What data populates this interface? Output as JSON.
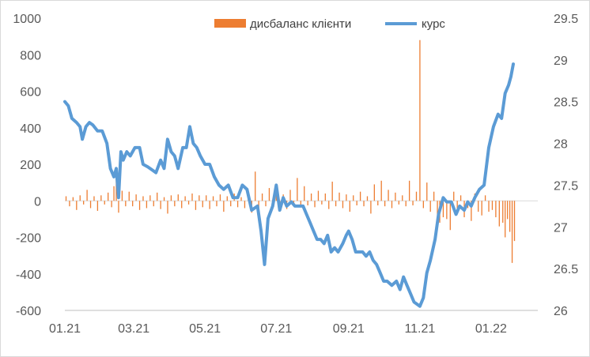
{
  "chart_data": {
    "type": "bar+line",
    "title": "",
    "legend": {
      "position": "top",
      "entries": [
        {
          "label": "дисбаланс клієнти",
          "kind": "bar",
          "color": "#ed7d31"
        },
        {
          "label": "курс",
          "kind": "line",
          "color": "#5b9bd5"
        }
      ]
    },
    "x_axis": {
      "type": "date",
      "range": [
        "2021-01-01",
        "2022-02-10"
      ],
      "tick_labels": [
        "01.21",
        "03.21",
        "05.21",
        "07.21",
        "09.21",
        "11.21",
        "01.22"
      ],
      "tick_dates": [
        "2021-01-01",
        "2021-03-01",
        "2021-05-01",
        "2021-07-01",
        "2021-09-01",
        "2021-11-01",
        "2022-01-01"
      ]
    },
    "y_left": {
      "min": -600,
      "max": 1000,
      "step": 200,
      "tick_labels": [
        "1000",
        "800",
        "600",
        "400",
        "200",
        "0",
        "-200",
        "-400",
        "-600"
      ]
    },
    "y_right": {
      "min": 26,
      "max": 29.5,
      "step": 0.5,
      "tick_labels": [
        "29.5",
        "29",
        "28.5",
        "28",
        "27.5",
        "27",
        "26.5",
        "26"
      ]
    },
    "series": [
      {
        "name": "курс",
        "axis": "right",
        "color": "#5b9bd5",
        "points": [
          [
            "2021-01-01",
            28.5
          ],
          [
            "2021-01-04",
            28.45
          ],
          [
            "2021-01-07",
            28.3
          ],
          [
            "2021-01-11",
            28.25
          ],
          [
            "2021-01-14",
            28.2
          ],
          [
            "2021-01-16",
            28.05
          ],
          [
            "2021-01-19",
            28.2
          ],
          [
            "2021-01-22",
            28.25
          ],
          [
            "2021-01-25",
            28.22
          ],
          [
            "2021-01-29",
            28.15
          ],
          [
            "2021-02-02",
            28.15
          ],
          [
            "2021-02-06",
            28.0
          ],
          [
            "2021-02-09",
            27.7
          ],
          [
            "2021-02-12",
            27.6
          ],
          [
            "2021-02-14",
            27.7
          ],
          [
            "2021-02-16",
            27.35
          ],
          [
            "2021-02-18",
            27.9
          ],
          [
            "2021-02-20",
            27.8
          ],
          [
            "2021-02-23",
            27.9
          ],
          [
            "2021-02-26",
            27.85
          ],
          [
            "2021-03-02",
            27.95
          ],
          [
            "2021-03-06",
            27.95
          ],
          [
            "2021-03-09",
            27.75
          ],
          [
            "2021-03-13",
            27.72
          ],
          [
            "2021-03-17",
            27.68
          ],
          [
            "2021-03-20",
            27.65
          ],
          [
            "2021-03-24",
            27.8
          ],
          [
            "2021-03-27",
            27.7
          ],
          [
            "2021-03-30",
            28.05
          ],
          [
            "2021-04-02",
            27.9
          ],
          [
            "2021-04-05",
            27.85
          ],
          [
            "2021-04-08",
            27.7
          ],
          [
            "2021-04-12",
            27.95
          ],
          [
            "2021-04-15",
            27.95
          ],
          [
            "2021-04-18",
            28.2
          ],
          [
            "2021-04-21",
            28.0
          ],
          [
            "2021-04-24",
            27.95
          ],
          [
            "2021-04-27",
            27.85
          ],
          [
            "2021-05-01",
            27.75
          ],
          [
            "2021-05-05",
            27.75
          ],
          [
            "2021-05-09",
            27.6
          ],
          [
            "2021-05-13",
            27.5
          ],
          [
            "2021-05-17",
            27.45
          ],
          [
            "2021-05-21",
            27.5
          ],
          [
            "2021-05-25",
            27.35
          ],
          [
            "2021-05-29",
            27.35
          ],
          [
            "2021-06-02",
            27.5
          ],
          [
            "2021-06-06",
            27.45
          ],
          [
            "2021-06-10",
            27.2
          ],
          [
            "2021-06-15",
            27.25
          ],
          [
            "2021-06-18",
            26.95
          ],
          [
            "2021-06-21",
            26.55
          ],
          [
            "2021-06-24",
            27.1
          ],
          [
            "2021-06-28",
            27.25
          ],
          [
            "2021-07-01",
            27.5
          ],
          [
            "2021-07-04",
            27.2
          ],
          [
            "2021-07-07",
            27.35
          ],
          [
            "2021-07-10",
            27.25
          ],
          [
            "2021-07-14",
            27.3
          ],
          [
            "2021-07-17",
            27.25
          ],
          [
            "2021-07-21",
            27.25
          ],
          [
            "2021-07-24",
            27.25
          ],
          [
            "2021-07-27",
            27.15
          ],
          [
            "2021-07-30",
            27.05
          ],
          [
            "2021-08-02",
            26.95
          ],
          [
            "2021-08-05",
            26.85
          ],
          [
            "2021-08-08",
            26.85
          ],
          [
            "2021-08-11",
            26.8
          ],
          [
            "2021-08-14",
            26.9
          ],
          [
            "2021-08-17",
            26.7
          ],
          [
            "2021-08-20",
            26.75
          ],
          [
            "2021-08-23",
            26.7
          ],
          [
            "2021-08-27",
            26.8
          ],
          [
            "2021-08-30",
            26.9
          ],
          [
            "2021-09-01",
            26.95
          ],
          [
            "2021-09-04",
            26.85
          ],
          [
            "2021-09-07",
            26.7
          ],
          [
            "2021-09-10",
            26.7
          ],
          [
            "2021-09-13",
            26.7
          ],
          [
            "2021-09-16",
            26.65
          ],
          [
            "2021-09-19",
            26.7
          ],
          [
            "2021-09-22",
            26.6
          ],
          [
            "2021-09-25",
            26.55
          ],
          [
            "2021-09-28",
            26.45
          ],
          [
            "2021-10-01",
            26.35
          ],
          [
            "2021-10-04",
            26.35
          ],
          [
            "2021-10-08",
            26.3
          ],
          [
            "2021-10-12",
            26.35
          ],
          [
            "2021-10-15",
            26.25
          ],
          [
            "2021-10-18",
            26.4
          ],
          [
            "2021-10-21",
            26.3
          ],
          [
            "2021-10-24",
            26.2
          ],
          [
            "2021-10-27",
            26.1
          ],
          [
            "2021-11-01",
            26.05
          ],
          [
            "2021-11-04",
            26.15
          ],
          [
            "2021-11-07",
            26.45
          ],
          [
            "2021-11-10",
            26.6
          ],
          [
            "2021-11-14",
            26.85
          ],
          [
            "2021-11-17",
            27.15
          ],
          [
            "2021-11-21",
            27.35
          ],
          [
            "2021-11-24",
            27.3
          ],
          [
            "2021-11-28",
            27.3
          ],
          [
            "2021-12-02",
            27.15
          ],
          [
            "2021-12-05",
            27.25
          ],
          [
            "2021-12-09",
            27.2
          ],
          [
            "2021-12-12",
            27.3
          ],
          [
            "2021-12-15",
            27.25
          ],
          [
            "2021-12-18",
            27.35
          ],
          [
            "2021-12-22",
            27.45
          ],
          [
            "2021-12-26",
            27.5
          ],
          [
            "2021-12-30",
            27.95
          ],
          [
            "2022-01-03",
            28.2
          ],
          [
            "2022-01-07",
            28.35
          ],
          [
            "2022-01-10",
            28.3
          ],
          [
            "2022-01-13",
            28.6
          ],
          [
            "2022-01-16",
            28.7
          ],
          [
            "2022-01-18",
            28.8
          ],
          [
            "2022-01-20",
            28.95
          ]
        ]
      },
      {
        "name": "дисбаланс клієнти",
        "axis": "left",
        "color": "#ed7d31",
        "bars": [
          [
            "2021-01-02",
            25
          ],
          [
            "2021-01-05",
            -30
          ],
          [
            "2021-01-08",
            20
          ],
          [
            "2021-01-11",
            -50
          ],
          [
            "2021-01-14",
            30
          ],
          [
            "2021-01-17",
            -20
          ],
          [
            "2021-01-20",
            60
          ],
          [
            "2021-01-23",
            -40
          ],
          [
            "2021-01-26",
            25
          ],
          [
            "2021-01-29",
            -55
          ],
          [
            "2021-02-01",
            30
          ],
          [
            "2021-02-04",
            -20
          ],
          [
            "2021-02-07",
            45
          ],
          [
            "2021-02-10",
            -35
          ],
          [
            "2021-02-12",
            80
          ],
          [
            "2021-02-14",
            130
          ],
          [
            "2021-02-16",
            -65
          ],
          [
            "2021-02-19",
            55
          ],
          [
            "2021-02-22",
            -30
          ],
          [
            "2021-02-25",
            50
          ],
          [
            "2021-02-28",
            -30
          ],
          [
            "2021-03-03",
            35
          ],
          [
            "2021-03-06",
            -50
          ],
          [
            "2021-03-09",
            25
          ],
          [
            "2021-03-12",
            -40
          ],
          [
            "2021-03-15",
            30
          ],
          [
            "2021-03-18",
            -30
          ],
          [
            "2021-03-21",
            45
          ],
          [
            "2021-03-24",
            -45
          ],
          [
            "2021-03-27",
            20
          ],
          [
            "2021-03-30",
            -70
          ],
          [
            "2021-04-02",
            30
          ],
          [
            "2021-04-05",
            -30
          ],
          [
            "2021-04-08",
            35
          ],
          [
            "2021-04-11",
            -40
          ],
          [
            "2021-04-14",
            25
          ],
          [
            "2021-04-17",
            -20
          ],
          [
            "2021-04-20",
            40
          ],
          [
            "2021-04-23",
            -50
          ],
          [
            "2021-04-26",
            30
          ],
          [
            "2021-04-29",
            -35
          ],
          [
            "2021-05-02",
            30
          ],
          [
            "2021-05-05",
            -45
          ],
          [
            "2021-05-08",
            25
          ],
          [
            "2021-05-11",
            -30
          ],
          [
            "2021-05-14",
            35
          ],
          [
            "2021-05-17",
            -60
          ],
          [
            "2021-05-20",
            25
          ],
          [
            "2021-05-23",
            -30
          ],
          [
            "2021-05-26",
            40
          ],
          [
            "2021-05-29",
            -35
          ],
          [
            "2021-06-01",
            20
          ],
          [
            "2021-06-04",
            -40
          ],
          [
            "2021-06-07",
            30
          ],
          [
            "2021-06-10",
            -65
          ],
          [
            "2021-06-13",
            160
          ],
          [
            "2021-06-16",
            -50
          ],
          [
            "2021-06-19",
            40
          ],
          [
            "2021-06-22",
            -30
          ],
          [
            "2021-06-25",
            70
          ],
          [
            "2021-06-28",
            -25
          ],
          [
            "2021-07-01",
            45
          ],
          [
            "2021-07-04",
            -30
          ],
          [
            "2021-07-07",
            35
          ],
          [
            "2021-07-10",
            -45
          ],
          [
            "2021-07-13",
            60
          ],
          [
            "2021-07-16",
            -20
          ],
          [
            "2021-07-19",
            125
          ],
          [
            "2021-07-22",
            -30
          ],
          [
            "2021-07-25",
            80
          ],
          [
            "2021-07-28",
            -25
          ],
          [
            "2021-07-31",
            40
          ],
          [
            "2021-08-03",
            -35
          ],
          [
            "2021-08-06",
            55
          ],
          [
            "2021-08-09",
            -20
          ],
          [
            "2021-08-12",
            40
          ],
          [
            "2021-08-15",
            -45
          ],
          [
            "2021-08-18",
            105
          ],
          [
            "2021-08-21",
            -30
          ],
          [
            "2021-08-24",
            45
          ],
          [
            "2021-08-27",
            -40
          ],
          [
            "2021-08-30",
            35
          ],
          [
            "2021-09-02",
            -60
          ],
          [
            "2021-09-05",
            30
          ],
          [
            "2021-09-08",
            -25
          ],
          [
            "2021-09-11",
            50
          ],
          [
            "2021-09-14",
            -30
          ],
          [
            "2021-09-17",
            25
          ],
          [
            "2021-09-20",
            -70
          ],
          [
            "2021-09-23",
            90
          ],
          [
            "2021-09-26",
            -25
          ],
          [
            "2021-09-29",
            110
          ],
          [
            "2021-10-02",
            -30
          ],
          [
            "2021-10-05",
            60
          ],
          [
            "2021-10-08",
            -40
          ],
          [
            "2021-10-11",
            45
          ],
          [
            "2021-10-14",
            -20
          ],
          [
            "2021-10-17",
            30
          ],
          [
            "2021-10-20",
            -30
          ],
          [
            "2021-10-23",
            110
          ],
          [
            "2021-10-26",
            -25
          ],
          [
            "2021-10-29",
            50
          ],
          [
            "2021-11-01",
            880
          ],
          [
            "2021-11-04",
            -40
          ],
          [
            "2021-11-07",
            100
          ],
          [
            "2021-11-10",
            -60
          ],
          [
            "2021-11-13",
            50
          ],
          [
            "2021-11-16",
            -80
          ],
          [
            "2021-11-18",
            -120
          ],
          [
            "2021-11-21",
            -90
          ],
          [
            "2021-11-24",
            -100
          ],
          [
            "2021-11-27",
            -160
          ],
          [
            "2021-11-30",
            50
          ],
          [
            "2021-12-03",
            -70
          ],
          [
            "2021-12-06",
            30
          ],
          [
            "2021-12-09",
            -90
          ],
          [
            "2021-12-12",
            -40
          ],
          [
            "2021-12-15",
            -110
          ],
          [
            "2021-12-18",
            40
          ],
          [
            "2021-12-21",
            -60
          ],
          [
            "2021-12-24",
            -80
          ],
          [
            "2021-12-27",
            30
          ],
          [
            "2021-12-30",
            -60
          ],
          [
            "2022-01-02",
            -50
          ],
          [
            "2022-01-05",
            -90
          ],
          [
            "2022-01-08",
            -140
          ],
          [
            "2022-01-11",
            -120
          ],
          [
            "2022-01-13",
            -200
          ],
          [
            "2022-01-15",
            -100
          ],
          [
            "2022-01-17",
            -170
          ],
          [
            "2022-01-19",
            -340
          ],
          [
            "2022-01-21",
            -220
          ]
        ]
      }
    ]
  }
}
